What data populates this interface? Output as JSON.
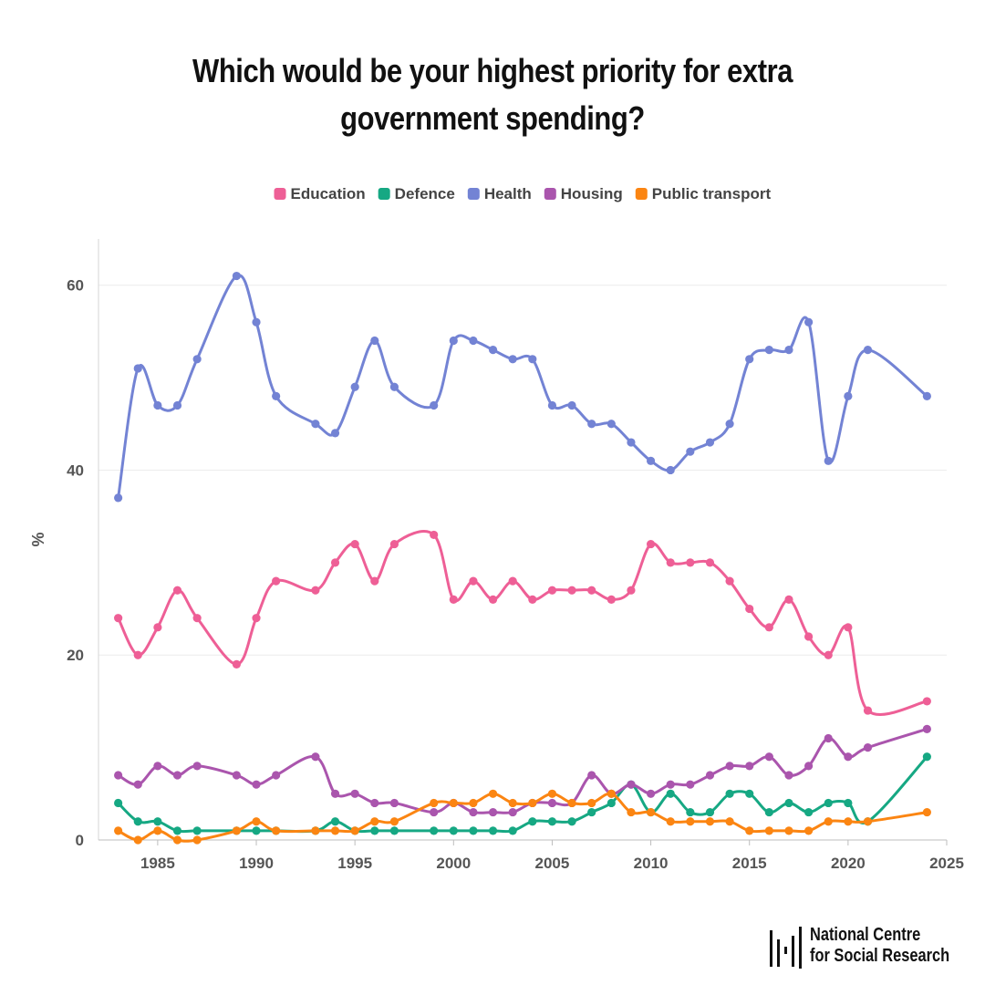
{
  "header": {
    "title": "Which would be your highest priority for extra government spending?"
  },
  "chart_data": {
    "type": "line",
    "title": "Which would be your highest priority for extra government spending?",
    "xlabel": "",
    "ylabel": "%",
    "xlim": [
      1982,
      2025
    ],
    "ylim": [
      0,
      65
    ],
    "xticks": [
      1985,
      1990,
      1995,
      2000,
      2005,
      2010,
      2015,
      2020,
      2025
    ],
    "yticks": [
      0,
      20,
      40,
      60
    ],
    "grid": true,
    "legend": "top-center",
    "x": [
      1983,
      1984,
      1985,
      1986,
      1987,
      1989,
      1990,
      1991,
      1993,
      1994,
      1995,
      1996,
      1997,
      1999,
      2000,
      2001,
      2002,
      2003,
      2004,
      2005,
      2006,
      2007,
      2008,
      2009,
      2010,
      2011,
      2012,
      2013,
      2014,
      2015,
      2016,
      2017,
      2018,
      2019,
      2020,
      2021,
      2024
    ],
    "series": [
      {
        "name": "Education",
        "color": "#ee5f96",
        "values": [
          24,
          20,
          23,
          27,
          24,
          19,
          24,
          28,
          27,
          30,
          32,
          28,
          32,
          33,
          26,
          28,
          26,
          28,
          26,
          27,
          27,
          27,
          26,
          27,
          32,
          30,
          30,
          30,
          28,
          25,
          23,
          26,
          22,
          20,
          23,
          14,
          15
        ]
      },
      {
        "name": "Defence",
        "color": "#16a883",
        "values": [
          4,
          2,
          2,
          1,
          1,
          1,
          1,
          1,
          1,
          2,
          1,
          1,
          1,
          1,
          1,
          1,
          1,
          1,
          2,
          2,
          2,
          3,
          4,
          6,
          3,
          5,
          3,
          3,
          5,
          5,
          3,
          4,
          3,
          4,
          4,
          2,
          9
        ]
      },
      {
        "name": "Health",
        "color": "#7383d4",
        "values": [
          37,
          51,
          47,
          47,
          52,
          61,
          56,
          48,
          45,
          44,
          49,
          54,
          49,
          47,
          54,
          54,
          53,
          52,
          52,
          47,
          47,
          45,
          45,
          43,
          41,
          40,
          42,
          43,
          45,
          52,
          53,
          53,
          56,
          41,
          48,
          53,
          48
        ]
      },
      {
        "name": "Housing",
        "color": "#aa55ad",
        "values": [
          7,
          6,
          8,
          7,
          8,
          7,
          6,
          7,
          9,
          5,
          5,
          4,
          4,
          3,
          4,
          3,
          3,
          3,
          4,
          4,
          4,
          7,
          5,
          6,
          5,
          6,
          6,
          7,
          8,
          8,
          9,
          7,
          8,
          11,
          9,
          10,
          12
        ]
      },
      {
        "name": "Public transport",
        "color": "#fb8512",
        "values": [
          1,
          0,
          1,
          0,
          0,
          1,
          2,
          1,
          1,
          1,
          1,
          2,
          2,
          4,
          4,
          4,
          5,
          4,
          4,
          5,
          4,
          4,
          5,
          3,
          3,
          2,
          2,
          2,
          2,
          1,
          1,
          1,
          1,
          2,
          2,
          2,
          3
        ]
      }
    ]
  },
  "branding": {
    "line1": "National Centre",
    "line2": "for Social Research"
  }
}
